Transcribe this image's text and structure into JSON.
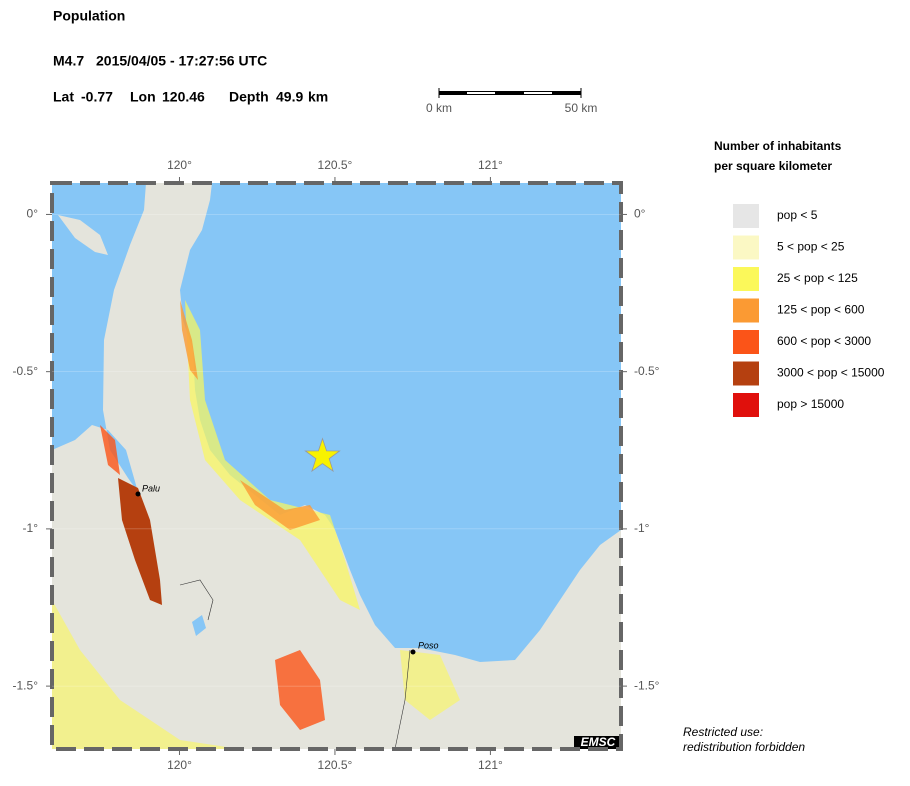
{
  "header": {
    "title": "Population",
    "magnitude": "M4.7",
    "datetime": "2015/04/05 - 17:27:56 UTC",
    "lat_label": "Lat",
    "lat": -0.77,
    "lon_label": "Lon",
    "lon": 120.46,
    "depth_label": "Depth",
    "depth": 49.9,
    "depth_unit": "km"
  },
  "scale_bar": {
    "start": "0 km",
    "end": "50 km"
  },
  "map": {
    "lonlim": [
      119.59,
      121.42
    ],
    "latlim": [
      0.1,
      -1.7
    ],
    "lon_ticks": [
      {
        "value": 120,
        "label": "120°"
      },
      {
        "value": 120.5,
        "label": "120.5°"
      },
      {
        "value": 121,
        "label": "121°"
      }
    ],
    "lat_ticks": [
      {
        "value": 0,
        "label": "0°"
      },
      {
        "value": -0.5,
        "label": "-0.5°"
      },
      {
        "value": -1,
        "label": "-1°"
      },
      {
        "value": -1.5,
        "label": "-1.5°"
      }
    ],
    "cities": [
      "Palu",
      "Poso"
    ],
    "credit": "EMSC"
  },
  "legend": {
    "title_lines": [
      "Number of inhabitants",
      "per square kilometer"
    ],
    "items": [
      {
        "label": "pop < 5",
        "color": "#e6e6e6"
      },
      {
        "label": "5 < pop < 25",
        "color": "#fbf8c4"
      },
      {
        "label": "25 < pop < 125",
        "color": "#fbf85a"
      },
      {
        "label": "125 < pop < 600",
        "color": "#fb9a33"
      },
      {
        "label": "600 < pop < 3000",
        "color": "#fb5418"
      },
      {
        "label": "3000 < pop < 15000",
        "color": "#b54010"
      },
      {
        "label": "pop > 15000",
        "color": "#e0100c"
      }
    ]
  },
  "notice": [
    "Restricted use:",
    "redistribution forbidden"
  ]
}
